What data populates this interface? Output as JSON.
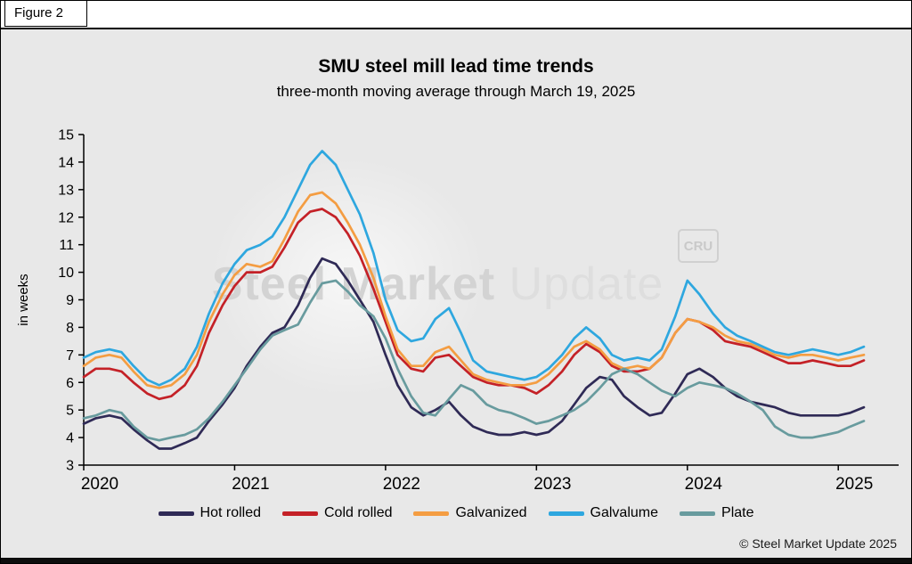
{
  "figure_label": "Figure 2",
  "title": "SMU steel mill lead time trends",
  "subtitle": "three-month moving average through March 19, 2025",
  "y_axis_label": "in weeks",
  "watermark": {
    "main_bold": "Steel Market",
    "main_light": " Update",
    "badge": "CRU"
  },
  "copyright": "© Steel Market Update 2025",
  "colors": {
    "background": "#e8e8e8",
    "axis": "#000000"
  },
  "chart_data": {
    "type": "line",
    "title": "SMU steel mill lead time trends",
    "subtitle": "three-month moving average through March 19, 2025",
    "xlabel": "",
    "ylabel": "in weeks",
    "xlim": [
      2020,
      2025.4
    ],
    "ylim": [
      3,
      15
    ],
    "grid": false,
    "legend_position": "bottom",
    "x_ticks": [
      2020,
      2021,
      2022,
      2023,
      2024,
      2025
    ],
    "y_ticks": [
      3,
      4,
      5,
      6,
      7,
      8,
      9,
      10,
      11,
      12,
      13,
      14,
      15
    ],
    "x": [
      2020.0,
      2020.08,
      2020.17,
      2020.25,
      2020.33,
      2020.42,
      2020.5,
      2020.58,
      2020.67,
      2020.75,
      2020.83,
      2020.92,
      2021.0,
      2021.08,
      2021.17,
      2021.25,
      2021.33,
      2021.42,
      2021.5,
      2021.58,
      2021.67,
      2021.75,
      2021.83,
      2021.92,
      2022.0,
      2022.08,
      2022.17,
      2022.25,
      2022.33,
      2022.42,
      2022.5,
      2022.58,
      2022.67,
      2022.75,
      2022.83,
      2022.92,
      2023.0,
      2023.08,
      2023.17,
      2023.25,
      2023.33,
      2023.42,
      2023.5,
      2023.58,
      2023.67,
      2023.75,
      2023.83,
      2023.92,
      2024.0,
      2024.08,
      2024.17,
      2024.25,
      2024.33,
      2024.42,
      2024.5,
      2024.58,
      2024.67,
      2024.75,
      2024.83,
      2024.92,
      2025.0,
      2025.08,
      2025.17
    ],
    "series": [
      {
        "name": "Hot rolled",
        "color": "#2f2a56",
        "values": [
          4.5,
          4.7,
          4.8,
          4.7,
          4.3,
          3.9,
          3.6,
          3.6,
          3.8,
          4.0,
          4.6,
          5.2,
          5.8,
          6.6,
          7.3,
          7.8,
          8.0,
          8.8,
          9.8,
          10.5,
          10.3,
          9.7,
          9.0,
          8.2,
          7.0,
          5.9,
          5.1,
          4.8,
          5.0,
          5.3,
          4.8,
          4.4,
          4.2,
          4.1,
          4.1,
          4.2,
          4.1,
          4.2,
          4.6,
          5.2,
          5.8,
          6.2,
          6.1,
          5.5,
          5.1,
          4.8,
          4.9,
          5.6,
          6.3,
          6.5,
          6.2,
          5.8,
          5.5,
          5.3,
          5.2,
          5.1,
          4.9,
          4.8,
          4.8,
          4.8,
          4.8,
          4.9,
          5.1
        ]
      },
      {
        "name": "Cold rolled",
        "color": "#c42127",
        "values": [
          6.2,
          6.5,
          6.5,
          6.4,
          6.0,
          5.6,
          5.4,
          5.5,
          5.9,
          6.6,
          7.8,
          8.8,
          9.5,
          10.0,
          10.0,
          10.2,
          10.9,
          11.8,
          12.2,
          12.3,
          12.0,
          11.4,
          10.6,
          9.4,
          8.2,
          7.0,
          6.5,
          6.4,
          6.9,
          7.0,
          6.6,
          6.2,
          6.0,
          5.9,
          5.9,
          5.8,
          5.6,
          5.9,
          6.4,
          7.0,
          7.4,
          7.1,
          6.6,
          6.4,
          6.4,
          6.5,
          6.9,
          7.8,
          8.3,
          8.2,
          7.9,
          7.5,
          7.4,
          7.3,
          7.1,
          6.9,
          6.7,
          6.7,
          6.8,
          6.7,
          6.6,
          6.6,
          6.8
        ]
      },
      {
        "name": "Galvanized",
        "color": "#f49d42",
        "values": [
          6.6,
          6.9,
          7.0,
          6.9,
          6.4,
          5.9,
          5.8,
          5.9,
          6.3,
          7.0,
          8.2,
          9.2,
          9.9,
          10.3,
          10.2,
          10.4,
          11.2,
          12.2,
          12.8,
          12.9,
          12.5,
          11.8,
          11.0,
          9.8,
          8.4,
          7.2,
          6.6,
          6.6,
          7.1,
          7.3,
          6.8,
          6.3,
          6.1,
          6.0,
          5.9,
          5.9,
          6.0,
          6.3,
          6.8,
          7.3,
          7.5,
          7.2,
          6.7,
          6.5,
          6.6,
          6.5,
          6.9,
          7.8,
          8.3,
          8.2,
          8.0,
          7.7,
          7.5,
          7.4,
          7.2,
          7.0,
          6.9,
          7.0,
          7.0,
          6.9,
          6.8,
          6.9,
          7.0
        ]
      },
      {
        "name": "Galvalume",
        "color": "#2ea7df",
        "values": [
          6.9,
          7.1,
          7.2,
          7.1,
          6.6,
          6.1,
          5.9,
          6.1,
          6.5,
          7.3,
          8.5,
          9.6,
          10.3,
          10.8,
          11.0,
          11.3,
          12.0,
          13.0,
          13.9,
          14.4,
          13.9,
          13.0,
          12.1,
          10.7,
          9.0,
          7.9,
          7.5,
          7.6,
          8.3,
          8.7,
          7.8,
          6.8,
          6.4,
          6.3,
          6.2,
          6.1,
          6.2,
          6.5,
          7.0,
          7.6,
          8.0,
          7.6,
          7.0,
          6.8,
          6.9,
          6.8,
          7.2,
          8.4,
          9.7,
          9.2,
          8.5,
          8.0,
          7.7,
          7.5,
          7.3,
          7.1,
          7.0,
          7.1,
          7.2,
          7.1,
          7.0,
          7.1,
          7.3
        ]
      },
      {
        "name": "Plate",
        "color": "#689b9e",
        "values": [
          4.7,
          4.8,
          5.0,
          4.9,
          4.4,
          4.0,
          3.9,
          4.0,
          4.1,
          4.3,
          4.7,
          5.3,
          5.9,
          6.5,
          7.2,
          7.7,
          7.9,
          8.1,
          8.9,
          9.6,
          9.7,
          9.3,
          8.8,
          8.4,
          7.6,
          6.5,
          5.5,
          4.9,
          4.8,
          5.4,
          5.9,
          5.7,
          5.2,
          5.0,
          4.9,
          4.7,
          4.5,
          4.6,
          4.8,
          5.0,
          5.3,
          5.8,
          6.3,
          6.5,
          6.3,
          6.0,
          5.7,
          5.5,
          5.8,
          6.0,
          5.9,
          5.8,
          5.6,
          5.3,
          5.0,
          4.4,
          4.1,
          4.0,
          4.0,
          4.1,
          4.2,
          4.4,
          4.6
        ]
      }
    ]
  }
}
